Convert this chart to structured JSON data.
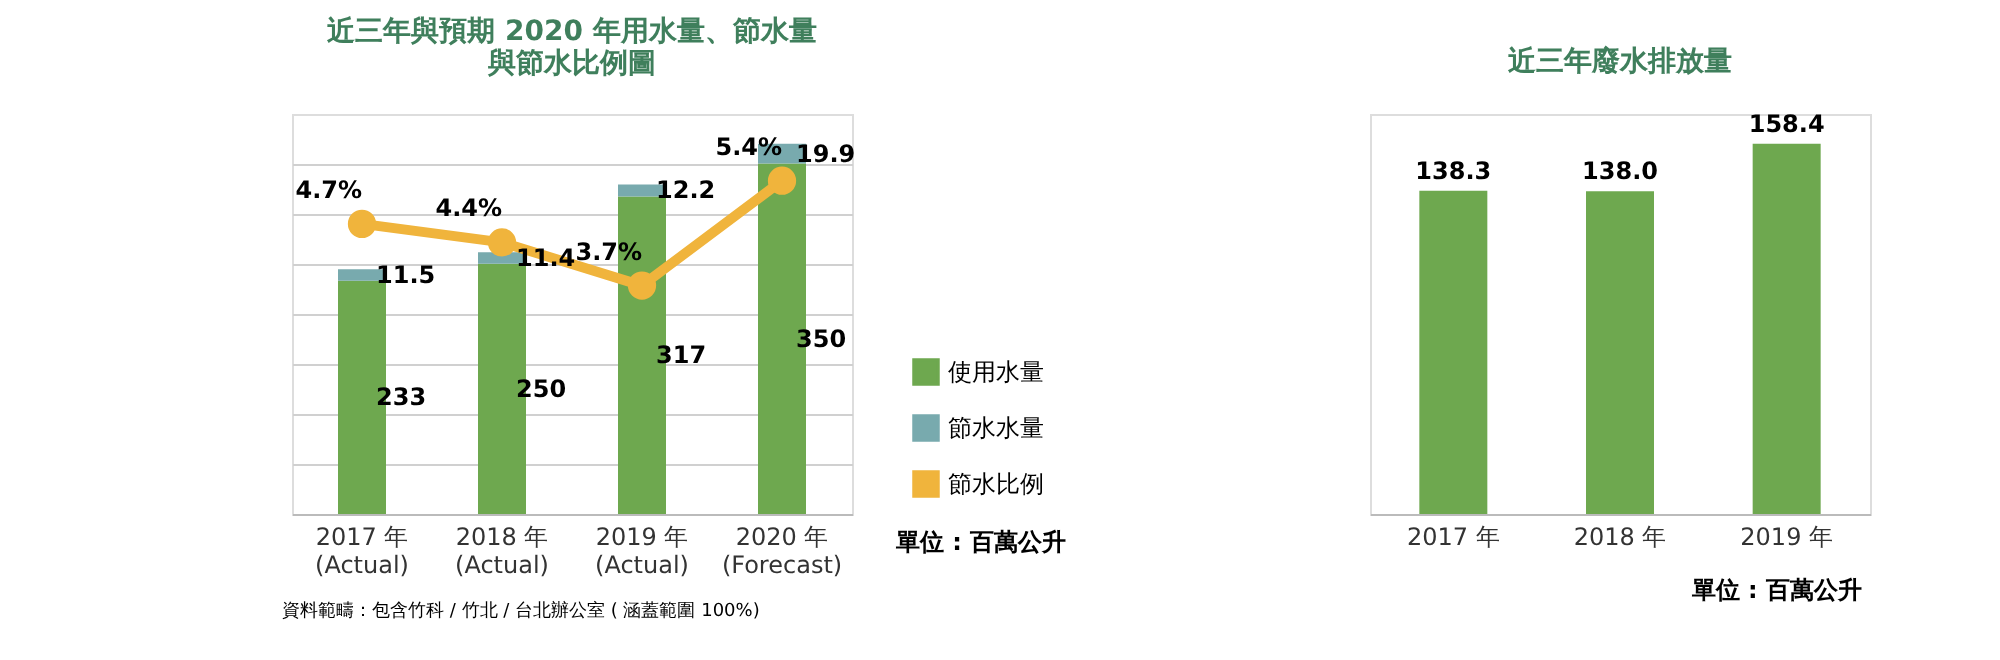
{
  "chart_data": [
    {
      "type": "bar",
      "title": "近三年與預期 2020 年用水量、節水量與節水比例圖",
      "categories": [
        "2017 年\n(Actual)",
        "2018 年\n(Actual)",
        "2019 年\n(Actual)",
        "2020 年\n(Forecast)"
      ],
      "stacked": true,
      "series": [
        {
          "name": "使用水量",
          "type": "bar",
          "color": "#6ea84f",
          "values": [
            233,
            250,
            317,
            350
          ]
        },
        {
          "name": "節水水量",
          "type": "bar",
          "color": "#78aaae",
          "values": [
            11.5,
            11.4,
            12.2,
            19.9
          ]
        },
        {
          "name": "節水比例",
          "type": "line",
          "axis": "y2",
          "color": "#f0b43c",
          "values": [
            4.7,
            4.4,
            3.7,
            5.4
          ],
          "value_labels": [
            "4.7%",
            "4.4%",
            "3.7%",
            "5.4%"
          ]
        }
      ],
      "grid": "y",
      "tick_labels": "x",
      "data_labels": true,
      "marker": "circle",
      "line_style": "solid",
      "legend": "bottom right",
      "annotations": [
        "單位 : 百萬公升",
        "資料範疇：包含竹科 / 竹北 / 台北辦公室 ( 涵蓋範圍 100%)"
      ]
    },
    {
      "type": "bar",
      "title": "近三年廢水排放量",
      "categories": [
        "2017 年",
        "2018 年",
        "2019 年"
      ],
      "series": [
        {
          "type": "bar",
          "color": "#6ea84f",
          "values": [
            138.3,
            138.0,
            158.4
          ],
          "value_labels": [
            "138.3",
            "138.0",
            "158.4"
          ]
        }
      ],
      "grid": "y",
      "tick_labels": "x",
      "data_labels": true,
      "annotations": [
        "單位 : 百萬公升"
      ]
    }
  ]
}
